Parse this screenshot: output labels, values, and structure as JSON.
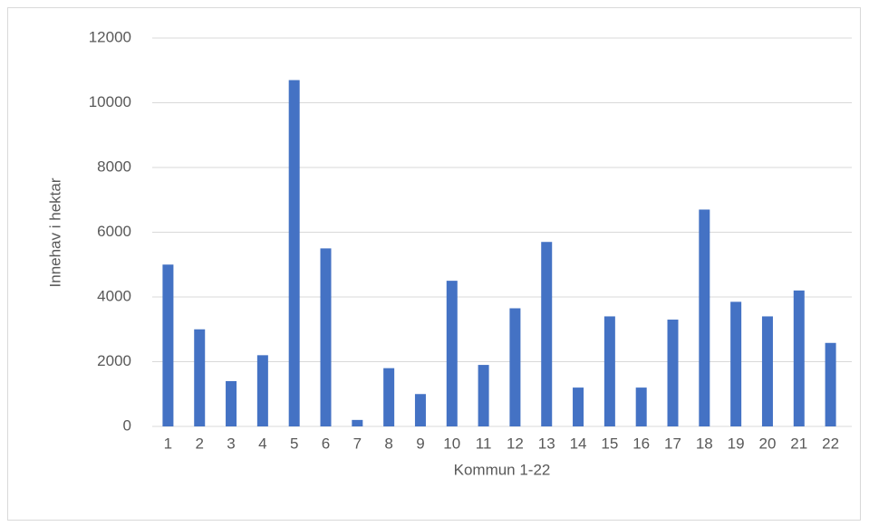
{
  "chart_data": {
    "type": "bar",
    "x_label": "Kommun 1-22",
    "y_label": "Innehav i hektar",
    "categories": [
      "1",
      "2",
      "3",
      "4",
      "5",
      "6",
      "7",
      "8",
      "9",
      "10",
      "11",
      "12",
      "13",
      "14",
      "15",
      "16",
      "17",
      "18",
      "19",
      "20",
      "21",
      "22"
    ],
    "values": [
      5000,
      3000,
      1400,
      2200,
      10700,
      5500,
      200,
      1800,
      1000,
      4500,
      1900,
      3650,
      5700,
      1200,
      3400,
      1200,
      3300,
      6700,
      3850,
      3400,
      4200,
      2580
    ],
    "color": "#4472c4",
    "ylim": [
      0,
      12000
    ],
    "yticks": [
      0,
      2000,
      4000,
      6000,
      8000,
      10000,
      12000
    ],
    "grid": true
  }
}
